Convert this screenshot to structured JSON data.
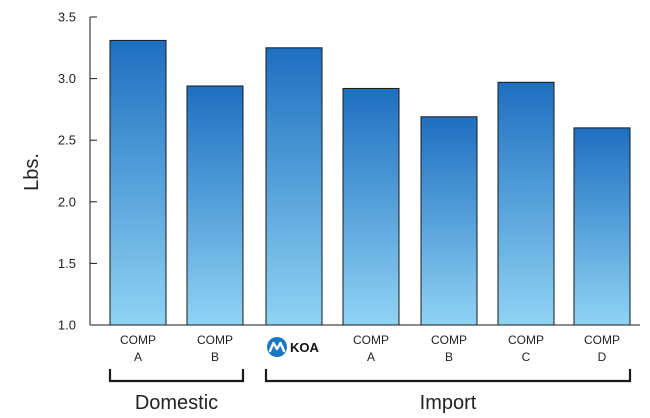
{
  "chart_data": {
    "type": "bar",
    "ylabel": "Lbs.",
    "xlabel": "",
    "ylim": [
      1.0,
      3.5
    ],
    "yticks": [
      "1.0",
      "1.5",
      "2.0",
      "2.5",
      "3.0",
      "3.5"
    ],
    "categories": [
      {
        "line1": "COMP",
        "line2": "A",
        "group": "Domestic"
      },
      {
        "line1": "COMP",
        "line2": "B",
        "group": "Domestic"
      },
      {
        "brand": "KOA",
        "group": "Import"
      },
      {
        "line1": "COMP",
        "line2": "A",
        "group": "Import"
      },
      {
        "line1": "COMP",
        "line2": "B",
        "group": "Import"
      },
      {
        "line1": "COMP",
        "line2": "C",
        "group": "Import"
      },
      {
        "line1": "COMP",
        "line2": "D",
        "group": "Import"
      }
    ],
    "values": [
      3.31,
      2.94,
      3.25,
      2.92,
      2.69,
      2.97,
      2.6
    ],
    "groups": [
      {
        "label": "Domestic",
        "first": 0,
        "last": 1
      },
      {
        "label": "Import",
        "first": 2,
        "last": 6
      }
    ],
    "colors": {
      "bar_top": "#1e6fc0",
      "bar_bottom": "#8fd3f4",
      "bar_stroke": "#1a1a1a",
      "axis": "#1a1a1a",
      "brand_logo": "#1a78c2"
    },
    "grid": false,
    "legend": "none"
  }
}
